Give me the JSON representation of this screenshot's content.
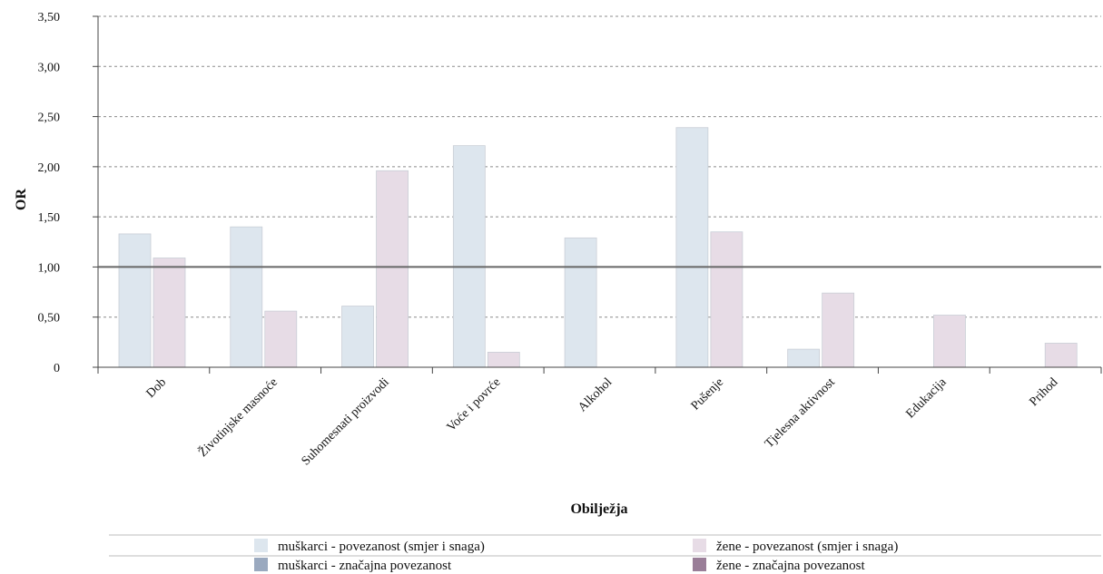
{
  "chart_data": {
    "type": "bar",
    "title": "",
    "xlabel": "Obilježja",
    "ylabel": "OR",
    "ylim": [
      0,
      3.5
    ],
    "yticks": [
      0,
      0.5,
      1.0,
      1.5,
      2.0,
      2.5,
      3.0,
      3.5
    ],
    "ytick_labels": [
      "0",
      "0,50",
      "1,00",
      "1,50",
      "2,00",
      "2,50",
      "3,00",
      "3,50"
    ],
    "reference_line": 1.0,
    "grid": "horizontal dotted",
    "legend_position": "bottom",
    "categories": [
      "Dob",
      "Životinjske masnoće",
      "Suhomesnati proizvodi",
      "Voće i povrće",
      "Alkohol",
      "Pušenje",
      "Tjelesna aktivnost",
      "Edukacija",
      "Prihod"
    ],
    "series": [
      {
        "name": "muškarci - povezanost (smjer i snaga)",
        "color": "#dde6ee",
        "values": [
          1.33,
          1.4,
          0.61,
          2.21,
          1.29,
          2.39,
          0.18,
          null,
          null
        ]
      },
      {
        "name": "žene - povezanost (smjer i snaga)",
        "color": "#e7dce6",
        "values": [
          1.09,
          0.56,
          1.96,
          0.15,
          null,
          1.35,
          0.74,
          0.52,
          0.24
        ]
      }
    ],
    "legend_extra": [
      {
        "name": "muškarci - značajna povezanost",
        "color": "#9aa9bf"
      },
      {
        "name": "žene - značajna povezanost",
        "color": "#9a7e98"
      }
    ]
  }
}
